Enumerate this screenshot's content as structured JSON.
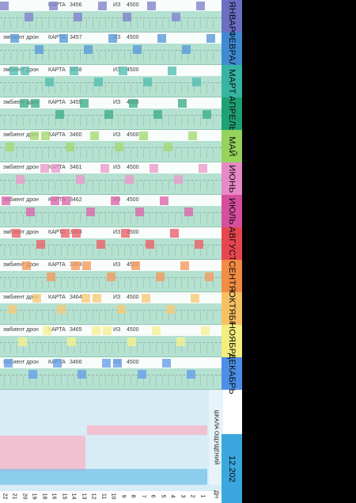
{
  "rows": [
    {
      "ambient": "",
      "card": "КАРТА",
      "num": "3456",
      "of": "ИЗ",
      "total": "4500",
      "month": "ЯНВАР",
      "color": "#6a6fc5"
    },
    {
      "ambient": "эмбиент дрон",
      "card": "КАРТА",
      "num": "3457",
      "of": "ИЗ",
      "total": "4500",
      "month": "ФЕВРАЛ",
      "color": "#3f8ad2"
    },
    {
      "ambient": "эмбиент дрон",
      "card": "КАРТА",
      "num": "3458",
      "of": "ИЗ",
      "total": "4500",
      "month": "МАРТ",
      "color": "#37b4a3"
    },
    {
      "ambient": "эмбиент дрон",
      "card": "КАРТА",
      "num": "3459",
      "of": "ИЗ",
      "total": "4500",
      "month": "АПРЕЛЬ",
      "color": "#1ea173"
    },
    {
      "ambient": "эмбиент дрон",
      "card": "КАРТА",
      "num": "3460",
      "of": "ИЗ",
      "total": "4500",
      "month": "МАЙ",
      "color": "#95d35a"
    },
    {
      "ambient": "эмбиент дрон",
      "card": "КАРТА",
      "num": "3461",
      "of": "ИЗ",
      "total": "4500",
      "month": "ИЮНЬ",
      "color": "#e889c6"
    },
    {
      "ambient": "эмбиент дрон",
      "card": "КАРТА",
      "num": "3462",
      "of": "ИЗ",
      "total": "4500",
      "month": "ИЮЛЬ",
      "color": "#d64f9d"
    },
    {
      "ambient": "эмбиент дрон",
      "card": "КАРТА",
      "num": "3463",
      "of": "ИЗ",
      "total": "4500",
      "month": "АВГУСТ",
      "color": "#e8464f"
    },
    {
      "ambient": "эмбиент дрон",
      "card": "КАРТА",
      "num": "3463",
      "of": "ИЗ",
      "total": "4500",
      "month": "СЕНТЯ",
      "color": "#f28b43"
    },
    {
      "ambient": "эмбиент дрон",
      "card": "КАРТА",
      "num": "3464",
      "of": "ИЗ",
      "total": "4500",
      "month": "ОКТЯБР",
      "color": "#f6c063"
    },
    {
      "ambient": "эмбиент дрон",
      "card": "КАРТА",
      "num": "3465",
      "of": "ИЗ",
      "total": "4500",
      "month": "НОЯБРЬ",
      "color": "#f4ee7e"
    },
    {
      "ambient": "эмбиент дрон",
      "card": "КАРТА",
      "num": "3466",
      "of": "ИЗ",
      "total": "4500",
      "month": "ДЕКАБРЬ",
      "color": "#4d8ee6"
    }
  ],
  "scale_label": "ШКАЛА ОЩУЩЕНИЙ",
  "date_label": "12.202",
  "axis_end_label": "ДН",
  "days": [
    "22",
    "21",
    "20",
    "19",
    "18",
    "16",
    "15",
    "14",
    "13",
    "12",
    "11",
    "10",
    "9",
    "8",
    "7",
    "6",
    "5",
    "4",
    "3",
    "2",
    "1"
  ]
}
